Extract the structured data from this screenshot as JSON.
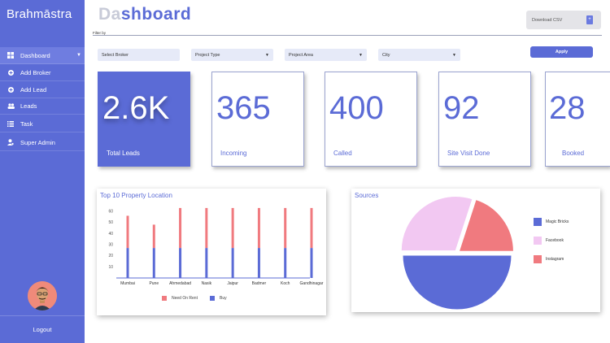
{
  "sidebar": {
    "brand": "Brahmāstra",
    "items": [
      {
        "label": "Dashboard",
        "icon": "grid-icon"
      },
      {
        "label": "Add Broker",
        "icon": "plus-circle-icon"
      },
      {
        "label": "Add Lead",
        "icon": "plus-circle-icon"
      },
      {
        "label": "Leads",
        "icon": "users-icon"
      },
      {
        "label": "Task",
        "icon": "list-icon"
      },
      {
        "label": "Super Admin",
        "icon": "user-admin-icon"
      }
    ],
    "logout": "Logout"
  },
  "header": {
    "title_light": "Da",
    "title_dark": "shboard",
    "filter_by": "Filter by",
    "download_csv": "Download  CSV"
  },
  "filters": {
    "broker": "Select Broker",
    "project_type": "Project Type",
    "project_area": "Project Area",
    "city": "City",
    "apply": "Apply"
  },
  "stats": [
    {
      "value": "2.6K",
      "label": "Total Leads"
    },
    {
      "value": "365",
      "label": "Incoming"
    },
    {
      "value": "400",
      "label": "Called"
    },
    {
      "value": "92",
      "label": "Site Visit Done"
    },
    {
      "value": "28",
      "label": "Booked"
    }
  ],
  "colors": {
    "accent": "#5b6bd6",
    "rent": "#f07a7f",
    "buy": "#5b6bd6",
    "instagram": "#f07a7f",
    "facebook": "#f2c8f2",
    "magic_bricks": "#5b6bd6"
  },
  "chart_data": [
    {
      "type": "bar",
      "title": "Top 10 Property Location",
      "categories": [
        "Mumbai",
        "Pune",
        "Ahmedabad",
        "Nasik",
        "Jaipur",
        "Badmer",
        "Koch",
        "Gandhinagar"
      ],
      "series": [
        {
          "name": "Buy",
          "values": [
            27,
            27,
            27,
            27,
            27,
            27,
            27,
            27
          ]
        },
        {
          "name": "Need On Rent",
          "values": [
            29,
            21,
            36,
            36,
            36,
            36,
            36,
            36
          ]
        }
      ],
      "stacked": true,
      "yticks": [
        10,
        20,
        30,
        40,
        50,
        60
      ],
      "ylim": [
        0,
        60
      ],
      "legend": "bottom"
    },
    {
      "type": "pie",
      "title": "Sources",
      "labels": [
        "Magic Bricks",
        "Facebook",
        "Instagram"
      ],
      "values": [
        50,
        30,
        20
      ],
      "legend": "right"
    }
  ]
}
